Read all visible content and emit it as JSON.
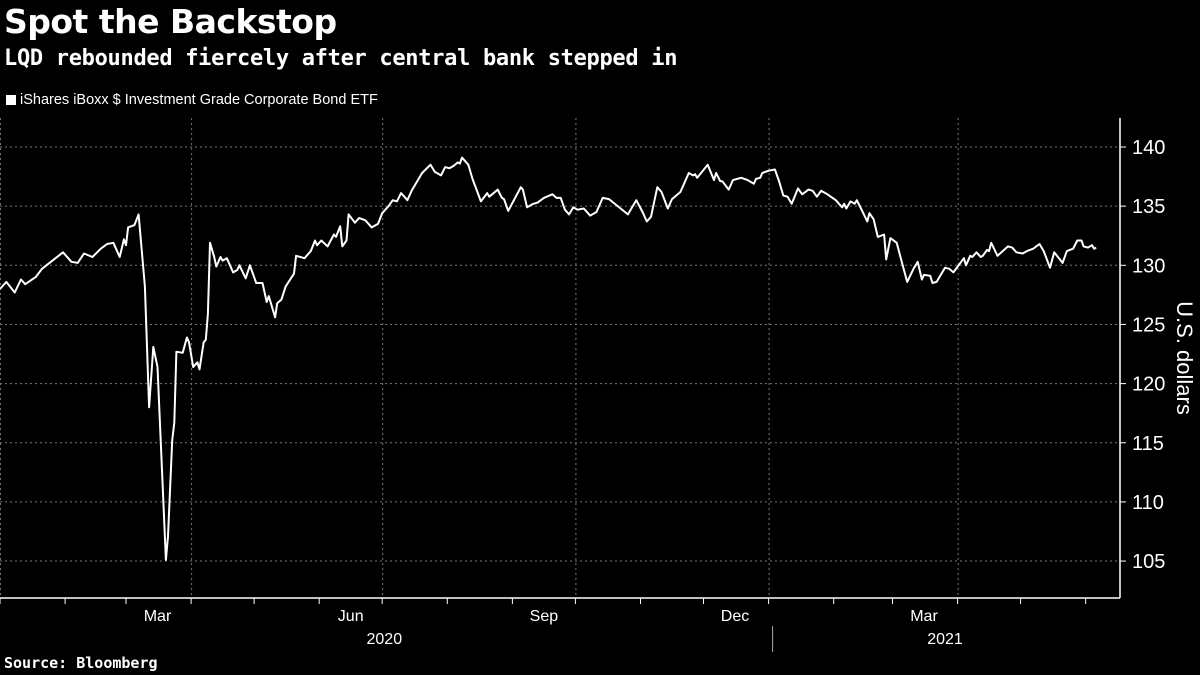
{
  "header": {
    "title": "Spot the Backstop",
    "subtitle": "LQD rebounded fiercely after central bank stepped in"
  },
  "footer": {
    "source": "Source: Bloomberg"
  },
  "chart_data": {
    "type": "line",
    "title": "Spot the Backstop",
    "subtitle": "LQD rebounded fiercely after central bank stepped in",
    "ylabel": "U.S. dollars",
    "xlabel": "",
    "ylim": [
      102,
      142
    ],
    "yticks": [
      105,
      110,
      115,
      120,
      125,
      130,
      135,
      140
    ],
    "y_axis_position": "right",
    "grid": true,
    "legend_position": "top-left",
    "x_unit": "days since 2020-01-01",
    "xlim": [
      0,
      533
    ],
    "month_ticks": [
      0,
      31,
      60,
      91,
      121,
      152,
      182,
      213,
      244,
      274,
      305,
      335,
      366,
      397,
      425,
      456,
      486,
      517
    ],
    "gridline_days": [
      0,
      91,
      182,
      274,
      366,
      456
    ],
    "month_labels": [
      {
        "label": "Mar",
        "day": 75
      },
      {
        "label": "Jun",
        "day": 167
      },
      {
        "label": "Sep",
        "day": 259
      },
      {
        "label": "Dec",
        "day": 350
      },
      {
        "label": "Mar",
        "day": 440
      }
    ],
    "year_labels": [
      {
        "label": "2020",
        "day": 183
      },
      {
        "label": "2021",
        "day": 450
      }
    ],
    "year_divider_day": 366,
    "series": [
      {
        "name": "iShares iBoxx $ Investment Grade Corporate Bond ETF",
        "color": "#ffffff",
        "points": [
          [
            0,
            128.0
          ],
          [
            3,
            128.6
          ],
          [
            7,
            127.7
          ],
          [
            10,
            128.8
          ],
          [
            12,
            128.4
          ],
          [
            17,
            129.0
          ],
          [
            20,
            129.7
          ],
          [
            25,
            130.4
          ],
          [
            30,
            131.1
          ],
          [
            34,
            130.3
          ],
          [
            37,
            130.2
          ],
          [
            40,
            131.0
          ],
          [
            44,
            130.7
          ],
          [
            48,
            131.4
          ],
          [
            51,
            131.8
          ],
          [
            54,
            131.9
          ],
          [
            57,
            130.7
          ],
          [
            59,
            132.2
          ],
          [
            60,
            131.7
          ],
          [
            61,
            133.2
          ],
          [
            64,
            133.4
          ],
          [
            66,
            134.3
          ],
          [
            69,
            128.2
          ],
          [
            71,
            118.0
          ],
          [
            73,
            123.1
          ],
          [
            75,
            121.4
          ],
          [
            79,
            105.1
          ],
          [
            80,
            107.1
          ],
          [
            82,
            115.2
          ],
          [
            83,
            116.7
          ],
          [
            84,
            122.7
          ],
          [
            87,
            122.6
          ],
          [
            89,
            123.9
          ],
          [
            90,
            123.5
          ],
          [
            92,
            121.4
          ],
          [
            94,
            121.8
          ],
          [
            95,
            121.2
          ],
          [
            97,
            123.5
          ],
          [
            98,
            123.7
          ],
          [
            99,
            125.9
          ],
          [
            100,
            131.9
          ],
          [
            102,
            130.7
          ],
          [
            103,
            129.9
          ],
          [
            105,
            130.7
          ],
          [
            106,
            130.4
          ],
          [
            108,
            130.6
          ],
          [
            111,
            129.4
          ],
          [
            113,
            129.6
          ],
          [
            114,
            130.0
          ],
          [
            117,
            128.9
          ],
          [
            119,
            130.0
          ],
          [
            122,
            128.5
          ],
          [
            125,
            128.5
          ],
          [
            127,
            126.9
          ],
          [
            128,
            127.4
          ],
          [
            131,
            125.6
          ],
          [
            132,
            126.8
          ],
          [
            134,
            127.1
          ],
          [
            136,
            128.2
          ],
          [
            140,
            129.3
          ],
          [
            141,
            130.8
          ],
          [
            145,
            130.6
          ],
          [
            148,
            131.2
          ],
          [
            150,
            132.1
          ],
          [
            151,
            131.7
          ],
          [
            153,
            132.1
          ],
          [
            156,
            131.6
          ],
          [
            159,
            132.6
          ],
          [
            160,
            132.4
          ],
          [
            162,
            133.3
          ],
          [
            163,
            131.6
          ],
          [
            165,
            132.1
          ],
          [
            166,
            134.3
          ],
          [
            169,
            133.6
          ],
          [
            171,
            134.0
          ],
          [
            174,
            133.8
          ],
          [
            177,
            133.2
          ],
          [
            180,
            133.5
          ],
          [
            182,
            134.4
          ],
          [
            185,
            135.0
          ],
          [
            187,
            135.5
          ],
          [
            189,
            135.4
          ],
          [
            191,
            136.1
          ],
          [
            194,
            135.5
          ],
          [
            196,
            136.3
          ],
          [
            201,
            137.8
          ],
          [
            205,
            138.5
          ],
          [
            207,
            137.9
          ],
          [
            210,
            137.6
          ],
          [
            212,
            138.3
          ],
          [
            214,
            138.2
          ],
          [
            216,
            138.4
          ],
          [
            218,
            138.7
          ],
          [
            219,
            138.6
          ],
          [
            220,
            139.1
          ],
          [
            223,
            138.5
          ],
          [
            225,
            137.3
          ],
          [
            229,
            135.4
          ],
          [
            232,
            136.1
          ],
          [
            233,
            135.8
          ],
          [
            237,
            136.4
          ],
          [
            239,
            135.7
          ],
          [
            240,
            135.6
          ],
          [
            242,
            134.6
          ],
          [
            248,
            136.6
          ],
          [
            249,
            136.4
          ],
          [
            251,
            134.9
          ],
          [
            254,
            135.2
          ],
          [
            256,
            135.3
          ],
          [
            259,
            135.7
          ],
          [
            263,
            136.0
          ],
          [
            265,
            135.7
          ],
          [
            267,
            135.7
          ],
          [
            269,
            134.7
          ],
          [
            271,
            134.3
          ],
          [
            273,
            134.9
          ],
          [
            275,
            134.7
          ],
          [
            278,
            134.8
          ],
          [
            281,
            134.2
          ],
          [
            284,
            134.5
          ],
          [
            287,
            135.7
          ],
          [
            290,
            135.6
          ],
          [
            299,
            134.3
          ],
          [
            303,
            135.5
          ],
          [
            306,
            134.5
          ],
          [
            308,
            133.7
          ],
          [
            310,
            134.1
          ],
          [
            313,
            136.6
          ],
          [
            315,
            136.2
          ],
          [
            318,
            134.8
          ],
          [
            320,
            135.6
          ],
          [
            324,
            136.2
          ],
          [
            328,
            137.8
          ],
          [
            330,
            137.6
          ],
          [
            331,
            137.7
          ],
          [
            332,
            137.4
          ],
          [
            337,
            138.5
          ],
          [
            340,
            137.2
          ],
          [
            341,
            137.8
          ],
          [
            343,
            137.1
          ],
          [
            344,
            137.1
          ],
          [
            347,
            136.4
          ],
          [
            349,
            137.2
          ],
          [
            351,
            137.3
          ],
          [
            353,
            137.4
          ],
          [
            356,
            137.2
          ],
          [
            359,
            136.9
          ],
          [
            360,
            137.3
          ],
          [
            362,
            137.4
          ],
          [
            363,
            137.8
          ],
          [
            366,
            138.0
          ],
          [
            369,
            138.1
          ],
          [
            371,
            137.1
          ],
          [
            373,
            135.9
          ],
          [
            375,
            135.8
          ],
          [
            377,
            135.2
          ],
          [
            380,
            136.5
          ],
          [
            382,
            136.0
          ],
          [
            385,
            136.4
          ],
          [
            387,
            136.3
          ],
          [
            389,
            135.8
          ],
          [
            391,
            136.3
          ],
          [
            394,
            136.0
          ],
          [
            398,
            135.5
          ],
          [
            401,
            134.9
          ],
          [
            402,
            135.2
          ],
          [
            403,
            134.8
          ],
          [
            405,
            135.4
          ],
          [
            407,
            135.2
          ],
          [
            408,
            135.5
          ],
          [
            410,
            134.8
          ],
          [
            413,
            133.7
          ],
          [
            414,
            134.4
          ],
          [
            416,
            133.9
          ],
          [
            418,
            132.4
          ],
          [
            421,
            132.6
          ],
          [
            422,
            130.5
          ],
          [
            424,
            132.3
          ],
          [
            427,
            131.9
          ],
          [
            430,
            129.9
          ],
          [
            432,
            128.6
          ],
          [
            435,
            129.7
          ],
          [
            437,
            130.3
          ],
          [
            439,
            128.8
          ],
          [
            440,
            129.2
          ],
          [
            443,
            129.1
          ],
          [
            444,
            128.5
          ],
          [
            446,
            128.6
          ],
          [
            450,
            129.8
          ],
          [
            452,
            129.7
          ],
          [
            454,
            129.4
          ],
          [
            459,
            130.6
          ],
          [
            460,
            130.0
          ],
          [
            462,
            130.8
          ],
          [
            463,
            130.7
          ],
          [
            465,
            131.1
          ],
          [
            467,
            130.7
          ],
          [
            468,
            130.8
          ],
          [
            470,
            131.3
          ],
          [
            471,
            131.2
          ],
          [
            472,
            131.9
          ],
          [
            475,
            130.8
          ],
          [
            480,
            131.6
          ],
          [
            482,
            131.5
          ],
          [
            484,
            131.1
          ],
          [
            487,
            131.0
          ],
          [
            489,
            131.2
          ],
          [
            492,
            131.4
          ],
          [
            495,
            131.8
          ],
          [
            497,
            131.2
          ],
          [
            500,
            129.8
          ],
          [
            502,
            131.1
          ],
          [
            506,
            130.2
          ],
          [
            508,
            131.2
          ],
          [
            511,
            131.4
          ],
          [
            513,
            132.1
          ],
          [
            515,
            132.1
          ],
          [
            516,
            131.6
          ],
          [
            518,
            131.5
          ],
          [
            520,
            131.7
          ],
          [
            521,
            131.4
          ],
          [
            522,
            131.5
          ]
        ]
      }
    ]
  }
}
